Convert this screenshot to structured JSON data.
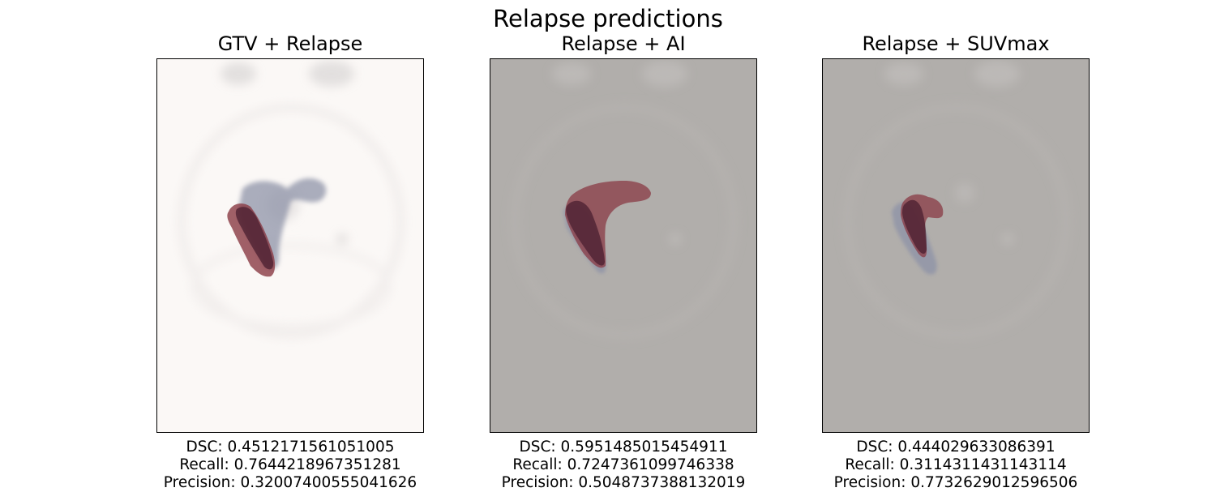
{
  "figure": {
    "title": "Relapse predictions",
    "panels": [
      {
        "title": "GTV + Relapse",
        "dsc": "DSC: 0.4512171561051005",
        "recall": "Recall: 0.7644218967351281",
        "precision": "Precision: 0.32007400555041626",
        "background_color": "#fbf8f6",
        "overlay_a": "gtv-contour",
        "overlay_b": "relapse-contour"
      },
      {
        "title": "Relapse + AI",
        "dsc": "DSC: 0.5951485015454911",
        "recall": "Recall: 0.7247361099746338",
        "precision": "Precision: 0.5048737388132019",
        "background_color": "#b1aeab",
        "overlay_a": "relapse-contour",
        "overlay_b": "ai-prediction-contour"
      },
      {
        "title": "Relapse + SUVmax",
        "dsc": "DSC: 0.444029633086391",
        "recall": "Recall: 0.3114311431143114",
        "precision": "Precision: 0.7732629012596506",
        "background_color": "#b1aeab",
        "overlay_a": "relapse-contour",
        "overlay_b": "suvmax-prediction-contour"
      }
    ]
  },
  "colors": {
    "gray_overlay": "#8f93a8",
    "red_overlay": "#8a3a44",
    "overlap": "#4a1f30"
  }
}
